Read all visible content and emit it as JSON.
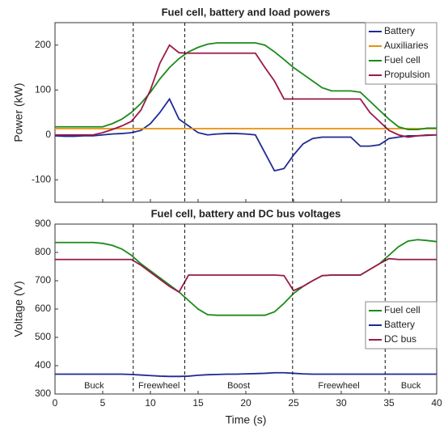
{
  "chart_data": [
    {
      "type": "line",
      "title": "Fuel cell, battery and load powers",
      "ylabel": "Power (kW)",
      "x": [
        0,
        1,
        2,
        3,
        4,
        5,
        6,
        7,
        8,
        9,
        10,
        11,
        12,
        13,
        14,
        15,
        16,
        17,
        18,
        19,
        20,
        21,
        22,
        23,
        24,
        25,
        26,
        27,
        28,
        29,
        30,
        31,
        32,
        33,
        34,
        35,
        36,
        37,
        38,
        39,
        40
      ],
      "xlim": [
        0,
        40
      ],
      "xticks": [
        0,
        5,
        10,
        15,
        20,
        25,
        30,
        35,
        40
      ],
      "ylim": [
        -150,
        250
      ],
      "yticks": [
        -100,
        0,
        100,
        200
      ],
      "vlines": [
        8.2,
        13.6,
        24.9,
        34.6
      ],
      "legend": "upper right",
      "grid": false,
      "series": [
        {
          "name": "Battery",
          "color": "#1f2a94",
          "values": [
            -2,
            -3,
            -3,
            -2,
            -2,
            0,
            2,
            3,
            5,
            10,
            25,
            50,
            80,
            35,
            20,
            5,
            0,
            2,
            3,
            3,
            2,
            0,
            -40,
            -80,
            -75,
            -45,
            -20,
            -8,
            -5,
            -5,
            -5,
            -5,
            -25,
            -25,
            -22,
            -8,
            -5,
            -2,
            -2,
            -1,
            0
          ]
        },
        {
          "name": "Auxiliaries",
          "color": "#e8900a",
          "values": [
            14,
            14,
            14,
            14,
            14,
            14,
            14,
            14,
            14,
            14,
            14,
            14,
            14,
            14,
            14,
            14,
            14,
            14,
            14,
            14,
            14,
            14,
            14,
            14,
            14,
            14,
            14,
            14,
            14,
            14,
            14,
            14,
            14,
            14,
            14,
            14,
            14,
            14,
            14,
            14,
            14
          ]
        },
        {
          "name": "Fuel cell",
          "color": "#1a8a1a",
          "values": [
            18,
            18,
            18,
            18,
            18,
            18,
            25,
            35,
            50,
            70,
            95,
            125,
            150,
            170,
            185,
            195,
            202,
            205,
            205,
            205,
            205,
            205,
            200,
            185,
            168,
            150,
            135,
            120,
            105,
            98,
            98,
            98,
            95,
            75,
            55,
            35,
            18,
            12,
            12,
            15,
            15
          ]
        },
        {
          "name": "Propulsion",
          "color": "#9a1a4a",
          "values": [
            0,
            0,
            0,
            0,
            0,
            5,
            12,
            20,
            30,
            55,
            100,
            160,
            200,
            183,
            182,
            182,
            182,
            182,
            182,
            182,
            182,
            182,
            150,
            120,
            80,
            80,
            80,
            80,
            80,
            80,
            80,
            80,
            80,
            50,
            30,
            10,
            0,
            -5,
            -2,
            0,
            0
          ]
        }
      ]
    },
    {
      "type": "line",
      "title": "Fuel cell, battery and DC bus voltages",
      "ylabel": "Voltage (V)",
      "xlabel": "Time (s)",
      "x": [
        0,
        1,
        2,
        3,
        4,
        5,
        6,
        7,
        8,
        9,
        10,
        11,
        12,
        13,
        14,
        15,
        16,
        17,
        18,
        19,
        20,
        21,
        22,
        23,
        24,
        25,
        26,
        27,
        28,
        29,
        30,
        31,
        32,
        33,
        34,
        35,
        36,
        37,
        38,
        39,
        40
      ],
      "xlim": [
        0,
        40
      ],
      "xticks": [
        0,
        5,
        10,
        15,
        20,
        25,
        30,
        35,
        40
      ],
      "ylim": [
        300,
        900
      ],
      "yticks": [
        300,
        400,
        500,
        600,
        700,
        800,
        900
      ],
      "vlines": [
        8.2,
        13.6,
        24.9,
        34.6
      ],
      "annotations": [
        "Buck",
        "Freewheel",
        "Boost",
        "Freewheel",
        "Buck"
      ],
      "legend": "center right",
      "grid": false,
      "series": [
        {
          "name": "Fuel cell",
          "color": "#1a8a1a",
          "values": [
            835,
            835,
            835,
            835,
            835,
            832,
            825,
            812,
            790,
            760,
            735,
            710,
            685,
            660,
            630,
            600,
            580,
            578,
            578,
            578,
            578,
            578,
            578,
            590,
            620,
            655,
            680,
            700,
            718,
            720,
            720,
            720,
            720,
            740,
            760,
            790,
            820,
            840,
            845,
            842,
            838
          ]
        },
        {
          "name": "Battery",
          "color": "#1f2a94",
          "values": [
            370,
            370,
            370,
            370,
            370,
            370,
            370,
            370,
            369,
            367,
            365,
            363,
            362,
            362,
            363,
            366,
            368,
            369,
            370,
            370,
            371,
            372,
            373,
            375,
            375,
            373,
            371,
            370,
            370,
            370,
            370,
            370,
            370,
            370,
            370,
            370,
            370,
            370,
            370,
            370,
            370
          ]
        },
        {
          "name": "DC bus",
          "color": "#9a1a4a",
          "values": [
            775,
            775,
            775,
            775,
            775,
            775,
            775,
            775,
            775,
            755,
            730,
            705,
            680,
            660,
            720,
            720,
            720,
            720,
            720,
            720,
            720,
            720,
            720,
            720,
            718,
            665,
            680,
            700,
            718,
            720,
            720,
            720,
            720,
            740,
            760,
            778,
            775,
            775,
            775,
            775,
            775
          ]
        }
      ]
    }
  ]
}
